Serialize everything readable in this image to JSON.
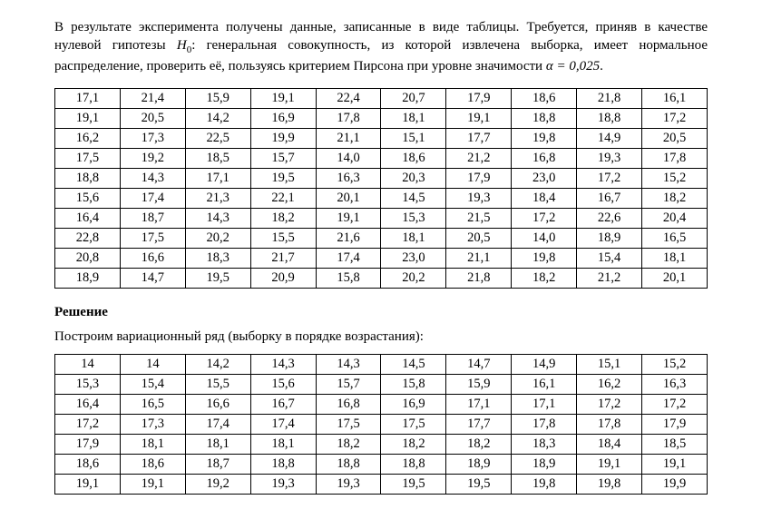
{
  "problem": {
    "line1": "В результате эксперимента получены данные, записанные в виде таблицы. Требуется, приняв в качестве нулевой гипотезы ",
    "h0_label": "H",
    "h0_sub": "0",
    "line2": ": генеральная совокупность, из которой извлечена выборка, имеет нормальное распределение, проверить её, пользуясь критерием Пирсона при уровне значимости ",
    "alpha_text": "α = 0,025",
    "line3": "."
  },
  "data_table": {
    "rows": [
      [
        "17,1",
        "21,4",
        "15,9",
        "19,1",
        "22,4",
        "20,7",
        "17,9",
        "18,6",
        "21,8",
        "16,1"
      ],
      [
        "19,1",
        "20,5",
        "14,2",
        "16,9",
        "17,8",
        "18,1",
        "19,1",
        "18,8",
        "18,8",
        "17,2"
      ],
      [
        "16,2",
        "17,3",
        "22,5",
        "19,9",
        "21,1",
        "15,1",
        "17,7",
        "19,8",
        "14,9",
        "20,5"
      ],
      [
        "17,5",
        "19,2",
        "18,5",
        "15,7",
        "14,0",
        "18,6",
        "21,2",
        "16,8",
        "19,3",
        "17,8"
      ],
      [
        "18,8",
        "14,3",
        "17,1",
        "19,5",
        "16,3",
        "20,3",
        "17,9",
        "23,0",
        "17,2",
        "15,2"
      ],
      [
        "15,6",
        "17,4",
        "21,3",
        "22,1",
        "20,1",
        "14,5",
        "19,3",
        "18,4",
        "16,7",
        "18,2"
      ],
      [
        "16,4",
        "18,7",
        "14,3",
        "18,2",
        "19,1",
        "15,3",
        "21,5",
        "17,2",
        "22,6",
        "20,4"
      ],
      [
        "22,8",
        "17,5",
        "20,2",
        "15,5",
        "21,6",
        "18,1",
        "20,5",
        "14,0",
        "18,9",
        "16,5"
      ],
      [
        "20,8",
        "16,6",
        "18,3",
        "21,7",
        "17,4",
        "23,0",
        "21,1",
        "19,8",
        "15,4",
        "18,1"
      ],
      [
        "18,9",
        "14,7",
        "19,5",
        "20,9",
        "15,8",
        "20,2",
        "21,8",
        "18,2",
        "21,2",
        "20,1"
      ]
    ]
  },
  "solution_heading": "Решение",
  "variational_intro": "Построим вариационный ряд (выборку в порядке возрастания):",
  "variational_table": {
    "rows": [
      [
        "14",
        "14",
        "14,2",
        "14,3",
        "14,3",
        "14,5",
        "14,7",
        "14,9",
        "15,1",
        "15,2"
      ],
      [
        "15,3",
        "15,4",
        "15,5",
        "15,6",
        "15,7",
        "15,8",
        "15,9",
        "16,1",
        "16,2",
        "16,3"
      ],
      [
        "16,4",
        "16,5",
        "16,6",
        "16,7",
        "16,8",
        "16,9",
        "17,1",
        "17,1",
        "17,2",
        "17,2"
      ],
      [
        "17,2",
        "17,3",
        "17,4",
        "17,4",
        "17,5",
        "17,5",
        "17,7",
        "17,8",
        "17,8",
        "17,9"
      ],
      [
        "17,9",
        "18,1",
        "18,1",
        "18,1",
        "18,2",
        "18,2",
        "18,2",
        "18,3",
        "18,4",
        "18,5"
      ],
      [
        "18,6",
        "18,6",
        "18,7",
        "18,8",
        "18,8",
        "18,8",
        "18,9",
        "18,9",
        "19,1",
        "19,1"
      ],
      [
        "19,1",
        "19,1",
        "19,2",
        "19,3",
        "19,3",
        "19,5",
        "19,5",
        "19,8",
        "19,8",
        "19,9"
      ]
    ]
  },
  "style": {
    "background_color": "#ffffff",
    "text_color": "#000000",
    "border_color": "#000000",
    "font_family": "Times New Roman",
    "body_fontsize": 15,
    "table_fontsize": 14.5,
    "columns": 10
  }
}
